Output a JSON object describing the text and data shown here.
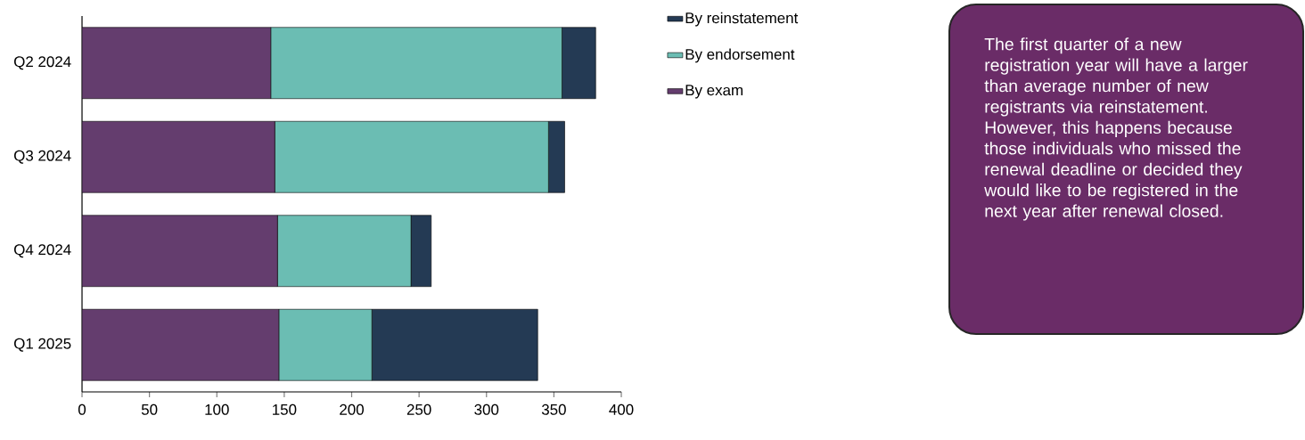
{
  "chart_data": {
    "type": "bar",
    "orientation": "horizontal",
    "stacked": true,
    "categories": [
      "Q2 2024",
      "Q3 2024",
      "Q4 2024",
      "Q1 2025"
    ],
    "series": [
      {
        "name": "By exam",
        "color": "#643d6e",
        "values": [
          140,
          143,
          145,
          146
        ]
      },
      {
        "name": "By endorsement",
        "color": "#6bbdb3",
        "values": [
          216,
          203,
          99,
          69
        ]
      },
      {
        "name": "By reinstatement",
        "color": "#243a54",
        "values": [
          25,
          12,
          15,
          123
        ]
      }
    ],
    "xlim": [
      0,
      400
    ],
    "xticks": [
      0,
      50,
      100,
      150,
      200,
      250,
      300,
      350,
      400
    ],
    "legend": "right",
    "grid": false,
    "annotations": [
      "The first quarter of a new registration year will have a larger than average number of new registrants via reinstatement. However, this happens because those individuals who missed the renewal deadline or decided they would like to be registered in the next year after renewal closed."
    ]
  }
}
